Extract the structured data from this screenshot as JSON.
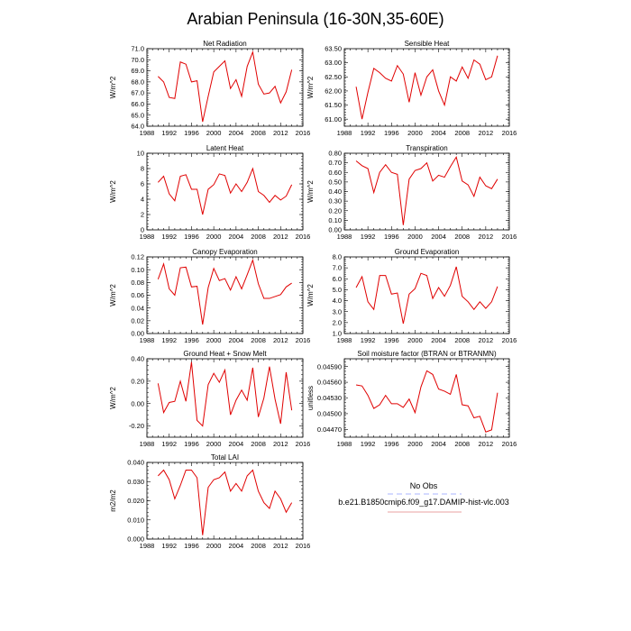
{
  "figure": {
    "title": "Arabian Peninsula (16-30N,35-60E)"
  },
  "legend": {
    "entries": [
      {
        "label": "No Obs",
        "color": "#aab4ff",
        "dash": true
      },
      {
        "label": "b.e21.B1850cmip6.f09_g17.DAMIP-hist-vlc.003",
        "color": "#e8a0a0",
        "dash": false
      }
    ]
  },
  "colors": {
    "series": "#e00000"
  },
  "chart_data": [
    {
      "type": "line",
      "title": "Net Radiation",
      "ylabel": "W/m^2",
      "xlim": [
        1988,
        2016
      ],
      "ylim": [
        64.0,
        71.0
      ],
      "xticks": [
        "1988",
        "1992",
        "1996",
        "2000",
        "2004",
        "2008",
        "2012",
        "2016"
      ],
      "yticks": [
        "64.0",
        "65.0",
        "66.0",
        "67.0",
        "68.0",
        "69.0",
        "70.0",
        "71.0"
      ],
      "x": [
        1990,
        1991,
        1992,
        1993,
        1994,
        1995,
        1996,
        1997,
        1998,
        1999,
        2000,
        2001,
        2002,
        2003,
        2004,
        2005,
        2006,
        2007,
        2008,
        2009,
        2010,
        2011,
        2012,
        2013,
        2014
      ],
      "series": [
        {
          "values": [
            68.5,
            68.0,
            66.6,
            66.5,
            69.8,
            69.6,
            68.0,
            68.1,
            64.4,
            66.7,
            68.9,
            69.4,
            69.9,
            67.4,
            68.2,
            66.7,
            69.4,
            70.7,
            67.8,
            66.9,
            67.0,
            67.6,
            66.1,
            67.1,
            69.1
          ]
        }
      ]
    },
    {
      "type": "line",
      "title": "Sensible Heat",
      "ylabel": "W/m^2",
      "xlim": [
        1988,
        2016
      ],
      "ylim": [
        60.75,
        63.5
      ],
      "xticks": [
        "1988",
        "1992",
        "1996",
        "2000",
        "2004",
        "2008",
        "2012",
        "2016"
      ],
      "yticks": [
        "61.00",
        "61.50",
        "62.00",
        "62.50",
        "63.00",
        "63.50"
      ],
      "x": [
        1990,
        1991,
        1992,
        1993,
        1994,
        1995,
        1996,
        1997,
        1998,
        1999,
        2000,
        2001,
        2002,
        2003,
        2004,
        2005,
        2006,
        2007,
        2008,
        2009,
        2010,
        2011,
        2012,
        2013,
        2014
      ],
      "series": [
        {
          "values": [
            62.15,
            61.0,
            61.95,
            62.8,
            62.65,
            62.45,
            62.35,
            62.9,
            62.6,
            61.6,
            62.65,
            61.85,
            62.5,
            62.75,
            62.0,
            61.5,
            62.5,
            62.35,
            62.85,
            62.45,
            63.1,
            62.95,
            62.4,
            62.5,
            63.25
          ]
        }
      ]
    },
    {
      "type": "line",
      "title": "Latent Heat",
      "ylabel": "W/m^2",
      "xlim": [
        1988,
        2016
      ],
      "ylim": [
        0,
        10
      ],
      "xticks": [
        "1988",
        "1992",
        "1996",
        "2000",
        "2004",
        "2008",
        "2012",
        "2016"
      ],
      "yticks": [
        "0",
        "2",
        "4",
        "6",
        "8",
        "10"
      ],
      "x": [
        1990,
        1991,
        1992,
        1993,
        1994,
        1995,
        1996,
        1997,
        1998,
        1999,
        2000,
        2001,
        2002,
        2003,
        2004,
        2005,
        2006,
        2007,
        2008,
        2009,
        2010,
        2011,
        2012,
        2013,
        2014
      ],
      "series": [
        {
          "values": [
            6.2,
            7.0,
            4.7,
            3.8,
            7.0,
            7.2,
            5.3,
            5.3,
            2.0,
            5.3,
            5.9,
            7.3,
            7.1,
            4.8,
            6.0,
            5.0,
            6.2,
            8.0,
            5.0,
            4.5,
            3.6,
            4.5,
            3.9,
            4.4,
            5.9
          ]
        }
      ]
    },
    {
      "type": "line",
      "title": "Transpiration",
      "ylabel": "W/m^2",
      "xlim": [
        1988,
        2016
      ],
      "ylim": [
        0,
        0.8
      ],
      "xticks": [
        "1988",
        "1992",
        "1996",
        "2000",
        "2004",
        "2008",
        "2012",
        "2016"
      ],
      "yticks": [
        "0.00",
        "0.10",
        "0.20",
        "0.30",
        "0.40",
        "0.50",
        "0.60",
        "0.70",
        "0.80"
      ],
      "x": [
        1990,
        1991,
        1992,
        1993,
        1994,
        1995,
        1996,
        1997,
        1998,
        1999,
        2000,
        2001,
        2002,
        2003,
        2004,
        2005,
        2006,
        2007,
        2008,
        2009,
        2010,
        2011,
        2012,
        2013,
        2014
      ],
      "series": [
        {
          "values": [
            0.72,
            0.67,
            0.64,
            0.39,
            0.6,
            0.68,
            0.6,
            0.58,
            0.05,
            0.53,
            0.62,
            0.64,
            0.7,
            0.51,
            0.57,
            0.55,
            0.66,
            0.76,
            0.51,
            0.47,
            0.35,
            0.55,
            0.46,
            0.43,
            0.53
          ]
        }
      ]
    },
    {
      "type": "line",
      "title": "Canopy Evaporation",
      "ylabel": "W/m^2",
      "xlim": [
        1988,
        2016
      ],
      "ylim": [
        0,
        0.12
      ],
      "xticks": [
        "1988",
        "1992",
        "1996",
        "2000",
        "2004",
        "2008",
        "2012",
        "2016"
      ],
      "yticks": [
        "0.00",
        "0.02",
        "0.04",
        "0.06",
        "0.08",
        "0.10",
        "0.12"
      ],
      "x": [
        1990,
        1991,
        1992,
        1993,
        1994,
        1995,
        1996,
        1997,
        1998,
        1999,
        2000,
        2001,
        2002,
        2003,
        2004,
        2005,
        2006,
        2007,
        2008,
        2009,
        2010,
        2011,
        2012,
        2013,
        2014
      ],
      "series": [
        {
          "values": [
            0.085,
            0.109,
            0.07,
            0.06,
            0.103,
            0.104,
            0.073,
            0.074,
            0.014,
            0.072,
            0.102,
            0.083,
            0.086,
            0.068,
            0.089,
            0.07,
            0.092,
            0.115,
            0.078,
            0.055,
            0.055,
            0.058,
            0.061,
            0.073,
            0.079
          ]
        }
      ]
    },
    {
      "type": "line",
      "title": "Ground Evaporation",
      "ylabel": "W/m^2",
      "xlim": [
        1988,
        2016
      ],
      "ylim": [
        1.0,
        8.0
      ],
      "xticks": [
        "1988",
        "1992",
        "1996",
        "2000",
        "2004",
        "2008",
        "2012",
        "2016"
      ],
      "yticks": [
        "1.0",
        "2.0",
        "3.0",
        "4.0",
        "5.0",
        "6.0",
        "7.0",
        "8.0"
      ],
      "x": [
        1990,
        1991,
        1992,
        1993,
        1994,
        1995,
        1996,
        1997,
        1998,
        1999,
        2000,
        2001,
        2002,
        2003,
        2004,
        2005,
        2006,
        2007,
        2008,
        2009,
        2010,
        2011,
        2012,
        2013,
        2014
      ],
      "series": [
        {
          "values": [
            5.2,
            6.2,
            3.9,
            3.2,
            6.3,
            6.3,
            4.6,
            4.7,
            1.9,
            4.6,
            5.1,
            6.5,
            6.3,
            4.2,
            5.2,
            4.4,
            5.4,
            7.1,
            4.4,
            3.9,
            3.2,
            3.9,
            3.3,
            3.9,
            5.3
          ]
        }
      ]
    },
    {
      "type": "line",
      "title": "Ground Heat + Snow Melt",
      "ylabel": "W/m^2",
      "xlim": [
        1988,
        2016
      ],
      "ylim": [
        -0.3,
        0.4
      ],
      "xticks": [
        "1988",
        "1992",
        "1996",
        "2000",
        "2004",
        "2008",
        "2012",
        "2016"
      ],
      "yticks": [
        "-0.20",
        "0.00",
        "0.20",
        "0.40"
      ],
      "x": [
        1990,
        1991,
        1992,
        1993,
        1994,
        1995,
        1996,
        1997,
        1998,
        1999,
        2000,
        2001,
        2002,
        2003,
        2004,
        2005,
        2006,
        2007,
        2008,
        2009,
        2010,
        2011,
        2012,
        2013,
        2014
      ],
      "series": [
        {
          "values": [
            0.18,
            -0.08,
            0.01,
            0.02,
            0.2,
            0.02,
            0.37,
            -0.15,
            -0.2,
            0.17,
            0.27,
            0.19,
            0.3,
            -0.1,
            0.03,
            0.12,
            0.03,
            0.32,
            -0.12,
            0.05,
            0.33,
            0.04,
            -0.18,
            0.28,
            -0.06
          ]
        }
      ]
    },
    {
      "type": "line",
      "title": "Soil moisture factor (BTRAN or BTRANMN)",
      "ylabel": "unitless",
      "xlim": [
        1988,
        2016
      ],
      "ylim": [
        0.04455,
        0.04605
      ],
      "xticks": [
        "1988",
        "1992",
        "1996",
        "2000",
        "2004",
        "2008",
        "2012",
        "2016"
      ],
      "yticks": [
        "0.04470",
        "0.04500",
        "0.04530",
        "0.04560",
        "0.04590"
      ],
      "x": [
        1990,
        1991,
        1992,
        1993,
        1994,
        1995,
        1996,
        1997,
        1998,
        1999,
        2000,
        2001,
        2002,
        2003,
        2004,
        2005,
        2006,
        2007,
        2008,
        2009,
        2010,
        2011,
        2012,
        2013,
        2014
      ],
      "series": [
        {
          "values": [
            0.04555,
            0.04553,
            0.04535,
            0.0451,
            0.04517,
            0.04535,
            0.04519,
            0.04519,
            0.04512,
            0.04528,
            0.04502,
            0.04551,
            0.04582,
            0.04575,
            0.04547,
            0.04543,
            0.04537,
            0.04575,
            0.04517,
            0.04515,
            0.04492,
            0.04495,
            0.04465,
            0.04469,
            0.0454
          ]
        }
      ]
    },
    {
      "type": "line",
      "title": "Total LAI",
      "ylabel": "m2/m2",
      "xlim": [
        1988,
        2016
      ],
      "ylim": [
        0,
        0.04
      ],
      "xticks": [
        "1988",
        "1992",
        "1996",
        "2000",
        "2004",
        "2008",
        "2012",
        "2016"
      ],
      "yticks": [
        "0.000",
        "0.010",
        "0.020",
        "0.030",
        "0.040"
      ],
      "x": [
        1990,
        1991,
        1992,
        1993,
        1994,
        1995,
        1996,
        1997,
        1998,
        1999,
        2000,
        2001,
        2002,
        2003,
        2004,
        2005,
        2006,
        2007,
        2008,
        2009,
        2010,
        2011,
        2012,
        2013,
        2014
      ],
      "series": [
        {
          "values": [
            0.033,
            0.036,
            0.031,
            0.021,
            0.028,
            0.036,
            0.036,
            0.032,
            0.002,
            0.027,
            0.031,
            0.032,
            0.035,
            0.025,
            0.029,
            0.025,
            0.033,
            0.036,
            0.025,
            0.019,
            0.016,
            0.025,
            0.021,
            0.014,
            0.019
          ]
        }
      ]
    }
  ]
}
